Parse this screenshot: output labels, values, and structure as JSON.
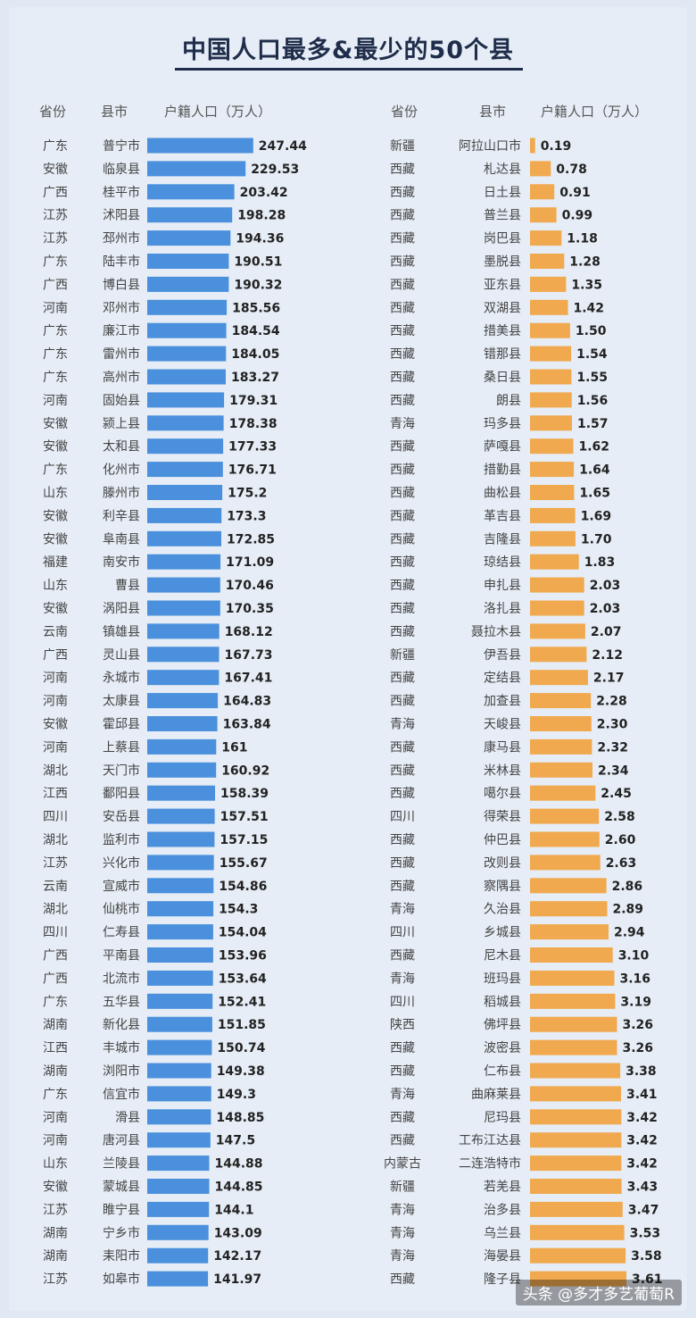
{
  "watermark": "头条 @多才多艺葡萄R",
  "colors": {
    "left_bar": "#4a90dc",
    "right_bar": "#f0a94e"
  },
  "chart_data": [
    {
      "type": "bar",
      "orientation": "horizontal",
      "title": "中国人口最多&最少的50个县",
      "header": {
        "province": "省份",
        "county": "县市",
        "value": "户籍人口（万人）"
      },
      "provinces": [
        "广东",
        "安徽",
        "广西",
        "江苏",
        "江苏",
        "广东",
        "广西",
        "河南",
        "广东",
        "广东",
        "广东",
        "河南",
        "安徽",
        "安徽",
        "广东",
        "山东",
        "安徽",
        "安徽",
        "福建",
        "山东",
        "安徽",
        "云南",
        "广西",
        "河南",
        "河南",
        "安徽",
        "河南",
        "湖北",
        "江西",
        "四川",
        "湖北",
        "江苏",
        "云南",
        "湖北",
        "四川",
        "广西",
        "广西",
        "广东",
        "湖南",
        "江西",
        "湖南",
        "广东",
        "河南",
        "河南",
        "山东",
        "安徽",
        "江苏",
        "湖南",
        "湖南",
        "江苏"
      ],
      "categories": [
        "普宁市",
        "临泉县",
        "桂平市",
        "沭阳县",
        "邳州市",
        "陆丰市",
        "博白县",
        "邓州市",
        "廉江市",
        "雷州市",
        "高州市",
        "固始县",
        "颍上县",
        "太和县",
        "化州市",
        "滕州市",
        "利辛县",
        "阜南县",
        "南安市",
        "曹县",
        "涡阳县",
        "镇雄县",
        "灵山县",
        "永城市",
        "太康县",
        "霍邱县",
        "上蔡县",
        "天门市",
        "鄱阳县",
        "安岳县",
        "监利市",
        "兴化市",
        "宣威市",
        "仙桃市",
        "仁寿县",
        "平南县",
        "北流市",
        "五华县",
        "新化县",
        "丰城市",
        "浏阳市",
        "信宜市",
        "滑县",
        "唐河县",
        "兰陵县",
        "蒙城县",
        "睢宁县",
        "宁乡市",
        "耒阳市",
        "如皋市"
      ],
      "values": [
        247.44,
        229.53,
        203.42,
        198.28,
        194.36,
        190.51,
        190.32,
        185.56,
        184.54,
        184.05,
        183.27,
        179.31,
        178.38,
        177.33,
        176.71,
        175.2,
        173.3,
        172.85,
        171.09,
        170.46,
        170.35,
        168.12,
        167.73,
        167.41,
        164.83,
        163.84,
        161,
        160.92,
        158.39,
        157.51,
        157.15,
        155.67,
        154.86,
        154.3,
        154.04,
        153.96,
        153.64,
        152.41,
        151.85,
        150.74,
        149.38,
        149.3,
        148.85,
        147.5,
        144.88,
        144.85,
        144.1,
        143.09,
        142.17,
        141.97
      ],
      "value_labels": [
        "247.44",
        "229.53",
        "203.42",
        "198.28",
        "194.36",
        "190.51",
        "190.32",
        "185.56",
        "184.54",
        "184.05",
        "183.27",
        "179.31",
        "178.38",
        "177.33",
        "176.71",
        "175.2",
        "173.3",
        "172.85",
        "171.09",
        "170.46",
        "170.35",
        "168.12",
        "167.73",
        "167.41",
        "164.83",
        "163.84",
        "161",
        "160.92",
        "158.39",
        "157.51",
        "157.15",
        "155.67",
        "154.86",
        "154.3",
        "154.04",
        "153.96",
        "153.64",
        "152.41",
        "151.85",
        "150.74",
        "149.38",
        "149.3",
        "148.85",
        "147.5",
        "144.88",
        "144.85",
        "144.1",
        "143.09",
        "142.17",
        "141.97"
      ],
      "xlim": [
        0,
        250
      ]
    },
    {
      "type": "bar",
      "orientation": "horizontal",
      "header": {
        "province": "省份",
        "county": "县市",
        "value": "户籍人口（万人）"
      },
      "provinces": [
        "新疆",
        "西藏",
        "西藏",
        "西藏",
        "西藏",
        "西藏",
        "西藏",
        "西藏",
        "西藏",
        "西藏",
        "西藏",
        "西藏",
        "青海",
        "西藏",
        "西藏",
        "西藏",
        "西藏",
        "西藏",
        "西藏",
        "西藏",
        "西藏",
        "西藏",
        "新疆",
        "西藏",
        "西藏",
        "青海",
        "西藏",
        "西藏",
        "西藏",
        "四川",
        "西藏",
        "西藏",
        "西藏",
        "青海",
        "四川",
        "西藏",
        "青海",
        "四川",
        "陕西",
        "西藏",
        "西藏",
        "青海",
        "西藏",
        "西藏",
        "内蒙古",
        "新疆",
        "青海",
        "青海",
        "青海",
        "西藏"
      ],
      "categories": [
        "阿拉山口市",
        "札达县",
        "日土县",
        "普兰县",
        "岗巴县",
        "墨脱县",
        "亚东县",
        "双湖县",
        "措美县",
        "错那县",
        "桑日县",
        "朗县",
        "玛多县",
        "萨嘎县",
        "措勤县",
        "曲松县",
        "革吉县",
        "吉隆县",
        "琼结县",
        "申扎县",
        "洛扎县",
        "聂拉木县",
        "伊吾县",
        "定结县",
        "加查县",
        "天峻县",
        "康马县",
        "米林县",
        "噶尔县",
        "得荣县",
        "仲巴县",
        "改则县",
        "察隅县",
        "久治县",
        "乡城县",
        "尼木县",
        "班玛县",
        "稻城县",
        "佛坪县",
        "波密县",
        "仁布县",
        "曲麻莱县",
        "尼玛县",
        "工布江达县",
        "二连浩特市",
        "若羌县",
        "治多县",
        "乌兰县",
        "海晏县",
        "隆子县"
      ],
      "values": [
        0.19,
        0.78,
        0.91,
        0.99,
        1.18,
        1.28,
        1.35,
        1.42,
        1.5,
        1.54,
        1.55,
        1.56,
        1.57,
        1.62,
        1.64,
        1.65,
        1.69,
        1.7,
        1.83,
        2.03,
        2.03,
        2.07,
        2.12,
        2.17,
        2.28,
        2.3,
        2.32,
        2.34,
        2.45,
        2.58,
        2.6,
        2.63,
        2.86,
        2.89,
        2.94,
        3.1,
        3.16,
        3.19,
        3.26,
        3.26,
        3.38,
        3.41,
        3.42,
        3.42,
        3.42,
        3.43,
        3.47,
        3.53,
        3.58,
        3.61
      ],
      "value_labels": [
        "0.19",
        "0.78",
        "0.91",
        "0.99",
        "1.18",
        "1.28",
        "1.35",
        "1.42",
        "1.50",
        "1.54",
        "1.55",
        "1.56",
        "1.57",
        "1.62",
        "1.64",
        "1.65",
        "1.69",
        "1.70",
        "1.83",
        "2.03",
        "2.03",
        "2.07",
        "2.12",
        "2.17",
        "2.28",
        "2.30",
        "2.32",
        "2.34",
        "2.45",
        "2.58",
        "2.60",
        "2.63",
        "2.86",
        "2.89",
        "2.94",
        "3.10",
        "3.16",
        "3.19",
        "3.26",
        "3.26",
        "3.38",
        "3.41",
        "3.42",
        "3.42",
        "3.42",
        "3.43",
        "3.47",
        "3.53",
        "3.58",
        "3.61"
      ],
      "xlim": [
        0,
        3.61
      ]
    }
  ]
}
